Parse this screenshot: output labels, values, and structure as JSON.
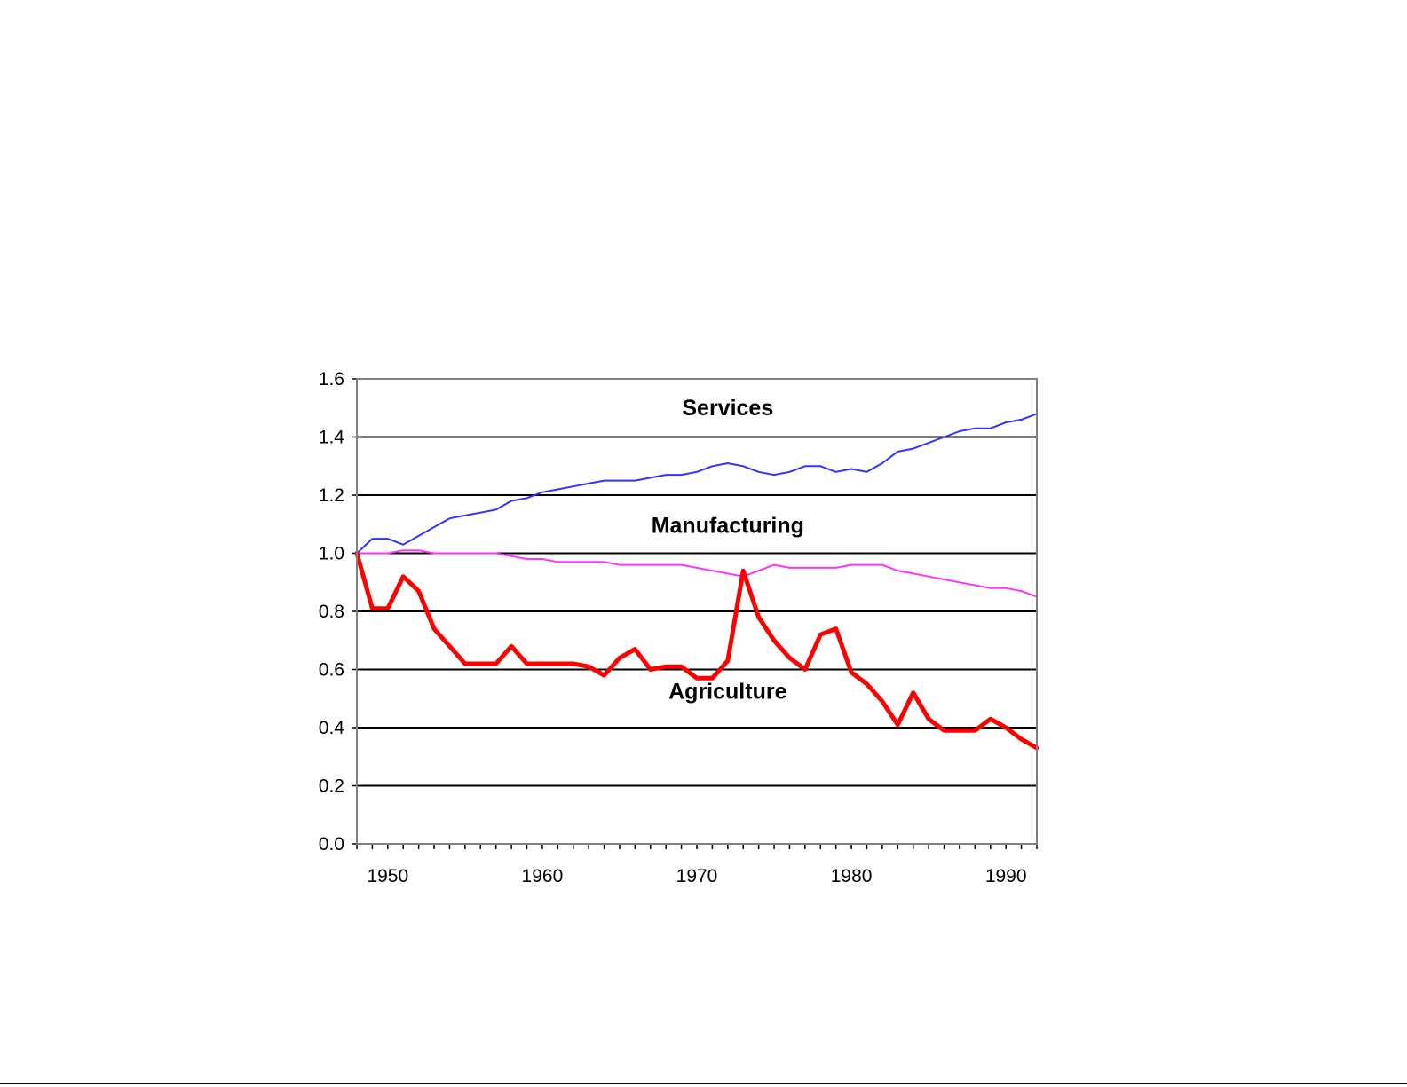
{
  "chart_data": {
    "type": "line",
    "title": "",
    "xlabel": "",
    "ylabel": "",
    "xlim": [
      1948,
      1992
    ],
    "ylim": [
      0,
      1.6
    ],
    "y_ticks": [
      "0.0",
      "0.2",
      "0.4",
      "0.6",
      "0.8",
      "1.0",
      "1.2",
      "1.4",
      "1.6"
    ],
    "x_ticks": [
      "1950",
      "1960",
      "1970",
      "1980",
      "1990"
    ],
    "grid": true,
    "series": [
      {
        "name": "Services",
        "color": "#3333ff",
        "x": [
          1948,
          1949,
          1950,
          1951,
          1952,
          1953,
          1954,
          1955,
          1956,
          1957,
          1958,
          1959,
          1960,
          1961,
          1962,
          1963,
          1964,
          1965,
          1966,
          1967,
          1968,
          1969,
          1970,
          1971,
          1972,
          1973,
          1974,
          1975,
          1976,
          1977,
          1978,
          1979,
          1980,
          1981,
          1982,
          1983,
          1984,
          1985,
          1986,
          1987,
          1988,
          1989,
          1990,
          1991,
          1992
        ],
        "y": [
          1.0,
          1.05,
          1.05,
          1.03,
          1.06,
          1.09,
          1.12,
          1.13,
          1.14,
          1.15,
          1.18,
          1.19,
          1.21,
          1.22,
          1.23,
          1.24,
          1.25,
          1.25,
          1.25,
          1.26,
          1.27,
          1.27,
          1.28,
          1.3,
          1.31,
          1.3,
          1.28,
          1.27,
          1.28,
          1.3,
          1.3,
          1.28,
          1.29,
          1.28,
          1.31,
          1.35,
          1.36,
          1.38,
          1.4,
          1.42,
          1.43,
          1.43,
          1.45,
          1.46,
          1.48
        ]
      },
      {
        "name": "Manufacturing",
        "color": "#ff33ff",
        "x": [
          1948,
          1949,
          1950,
          1951,
          1952,
          1953,
          1954,
          1955,
          1956,
          1957,
          1958,
          1959,
          1960,
          1961,
          1962,
          1963,
          1964,
          1965,
          1966,
          1967,
          1968,
          1969,
          1970,
          1971,
          1972,
          1973,
          1974,
          1975,
          1976,
          1977,
          1978,
          1979,
          1980,
          1981,
          1982,
          1983,
          1984,
          1985,
          1986,
          1987,
          1988,
          1989,
          1990,
          1991,
          1992
        ],
        "y": [
          1.0,
          1.0,
          1.0,
          1.01,
          1.01,
          1.0,
          1.0,
          1.0,
          1.0,
          1.0,
          0.99,
          0.98,
          0.98,
          0.97,
          0.97,
          0.97,
          0.97,
          0.96,
          0.96,
          0.96,
          0.96,
          0.96,
          0.95,
          0.94,
          0.93,
          0.92,
          0.94,
          0.96,
          0.95,
          0.95,
          0.95,
          0.95,
          0.96,
          0.96,
          0.96,
          0.94,
          0.93,
          0.92,
          0.91,
          0.9,
          0.89,
          0.88,
          0.88,
          0.87,
          0.85
        ]
      },
      {
        "name": "Agriculture",
        "color": "#ff0000",
        "x": [
          1948,
          1949,
          1950,
          1951,
          1952,
          1953,
          1954,
          1955,
          1956,
          1957,
          1958,
          1959,
          1960,
          1961,
          1962,
          1963,
          1964,
          1965,
          1966,
          1967,
          1968,
          1969,
          1970,
          1971,
          1972,
          1973,
          1974,
          1975,
          1976,
          1977,
          1978,
          1979,
          1980,
          1981,
          1982,
          1983,
          1984,
          1985,
          1986,
          1987,
          1988,
          1989,
          1990,
          1991,
          1992
        ],
        "y": [
          1.0,
          0.81,
          0.81,
          0.92,
          0.87,
          0.74,
          0.68,
          0.62,
          0.62,
          0.62,
          0.68,
          0.62,
          0.62,
          0.62,
          0.62,
          0.61,
          0.58,
          0.64,
          0.67,
          0.6,
          0.61,
          0.61,
          0.57,
          0.57,
          0.63,
          0.94,
          0.78,
          0.7,
          0.64,
          0.6,
          0.72,
          0.74,
          0.59,
          0.55,
          0.49,
          0.41,
          0.52,
          0.43,
          0.39,
          0.39,
          0.39,
          0.43,
          0.4,
          0.36,
          0.33
        ]
      }
    ],
    "annotations": [
      {
        "text": "Services",
        "x": 1972,
        "y": 1.475
      },
      {
        "text": "Manufacturing",
        "x": 1972,
        "y": 1.07
      },
      {
        "text": "Agriculture",
        "x": 1972,
        "y": 0.5
      }
    ]
  }
}
